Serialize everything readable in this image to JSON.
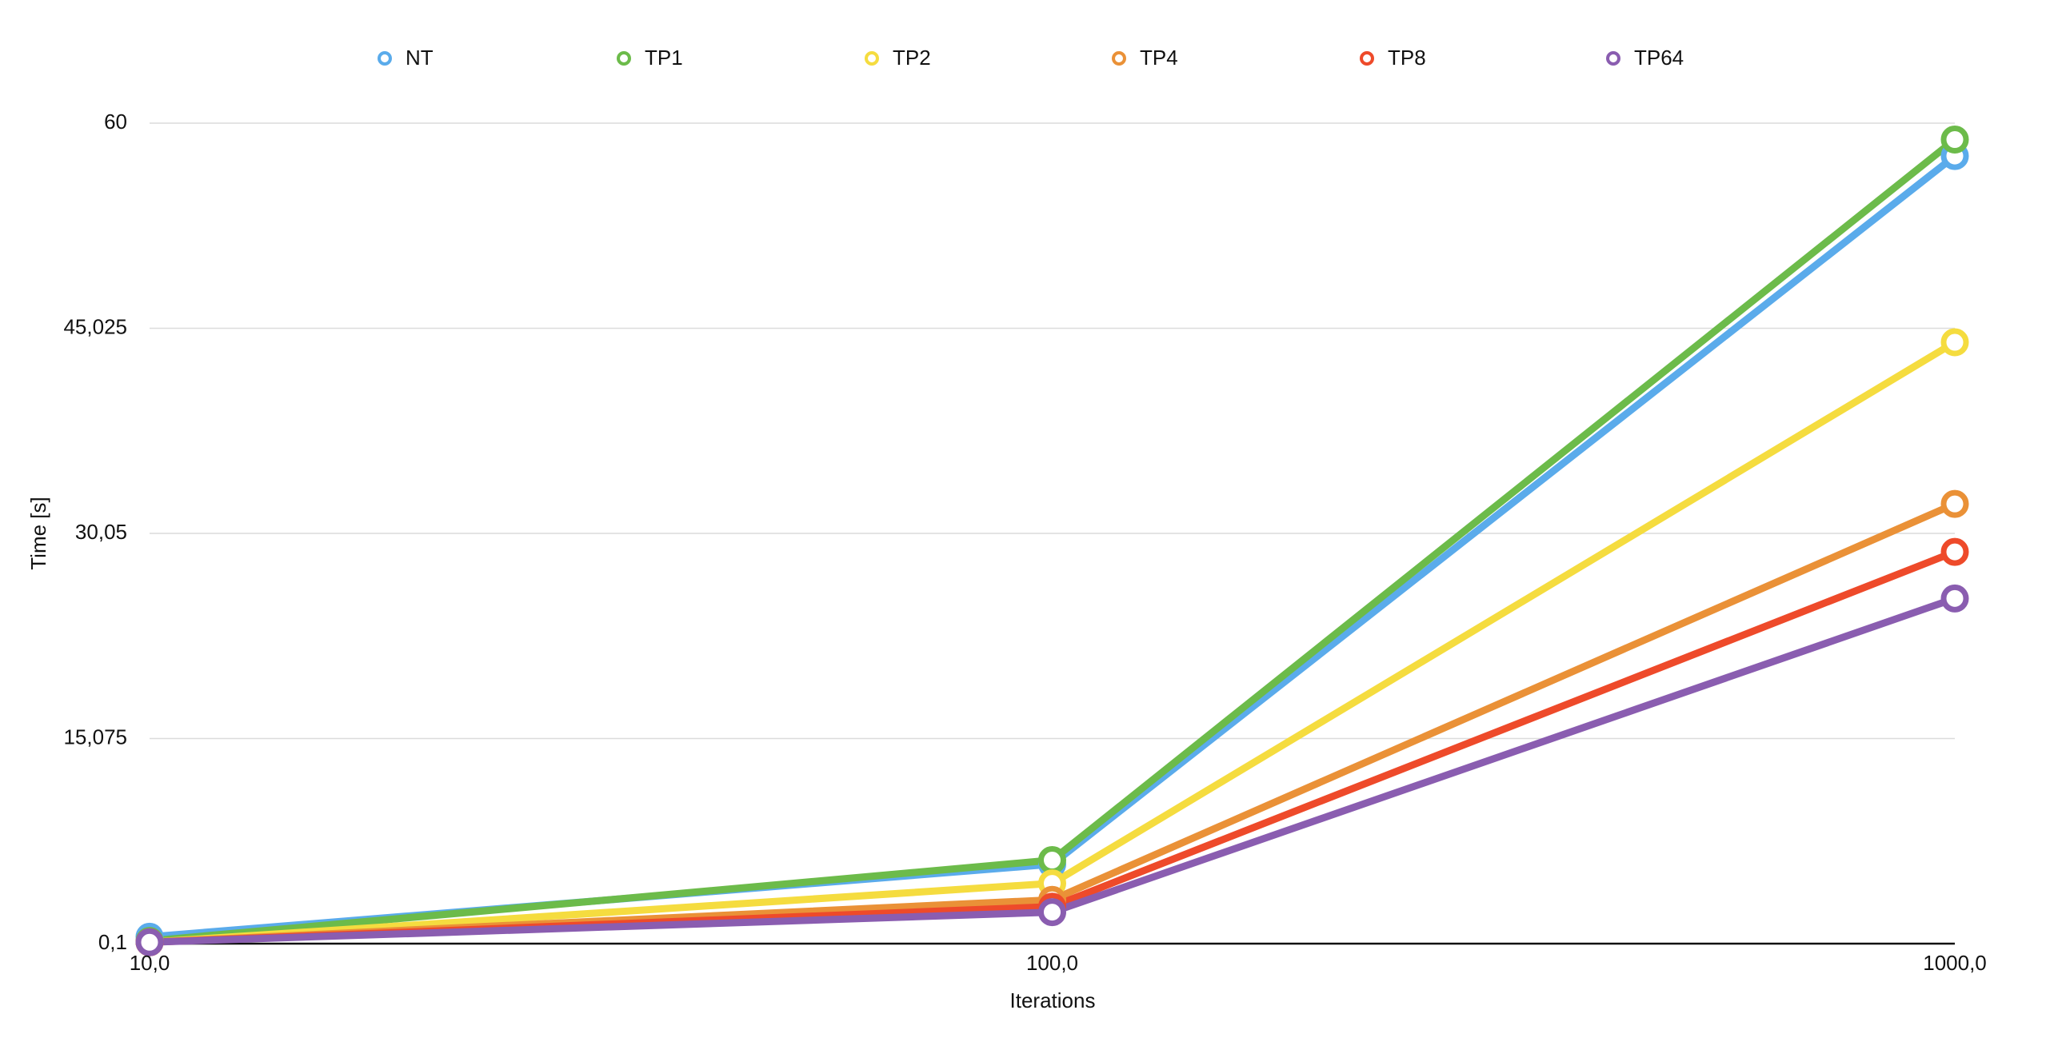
{
  "chart_data": {
    "type": "line",
    "x_label": "Iterations",
    "y_label": "Time [s]",
    "categories": [
      "10,0",
      "100,0",
      "1000,0"
    ],
    "ylim": [
      0.1,
      60
    ],
    "yticks": [
      {
        "value": 0.1,
        "label": "0,1"
      },
      {
        "value": 15.075,
        "label": "15,075"
      },
      {
        "value": 30.05,
        "label": "30,05"
      },
      {
        "value": 45.025,
        "label": "45,025"
      },
      60
    ],
    "grid": true,
    "legend": "top",
    "series": [
      {
        "name": "NT",
        "color": "#5aabeb",
        "values": [
          0.6,
          5.9,
          57.6
        ]
      },
      {
        "name": "TP1",
        "color": "#6cbb4a",
        "values": [
          0.3,
          6.2,
          58.8
        ]
      },
      {
        "name": "TP2",
        "color": "#f5dc3f",
        "values": [
          0.2,
          4.5,
          44.0
        ]
      },
      {
        "name": "TP4",
        "color": "#ea9137",
        "values": [
          0.2,
          3.3,
          32.2
        ]
      },
      {
        "name": "TP8",
        "color": "#ee4a2a",
        "values": [
          0.2,
          2.8,
          28.7
        ]
      },
      {
        "name": "TP64",
        "color": "#8a5db0",
        "values": [
          0.2,
          2.4,
          25.3
        ]
      }
    ]
  }
}
